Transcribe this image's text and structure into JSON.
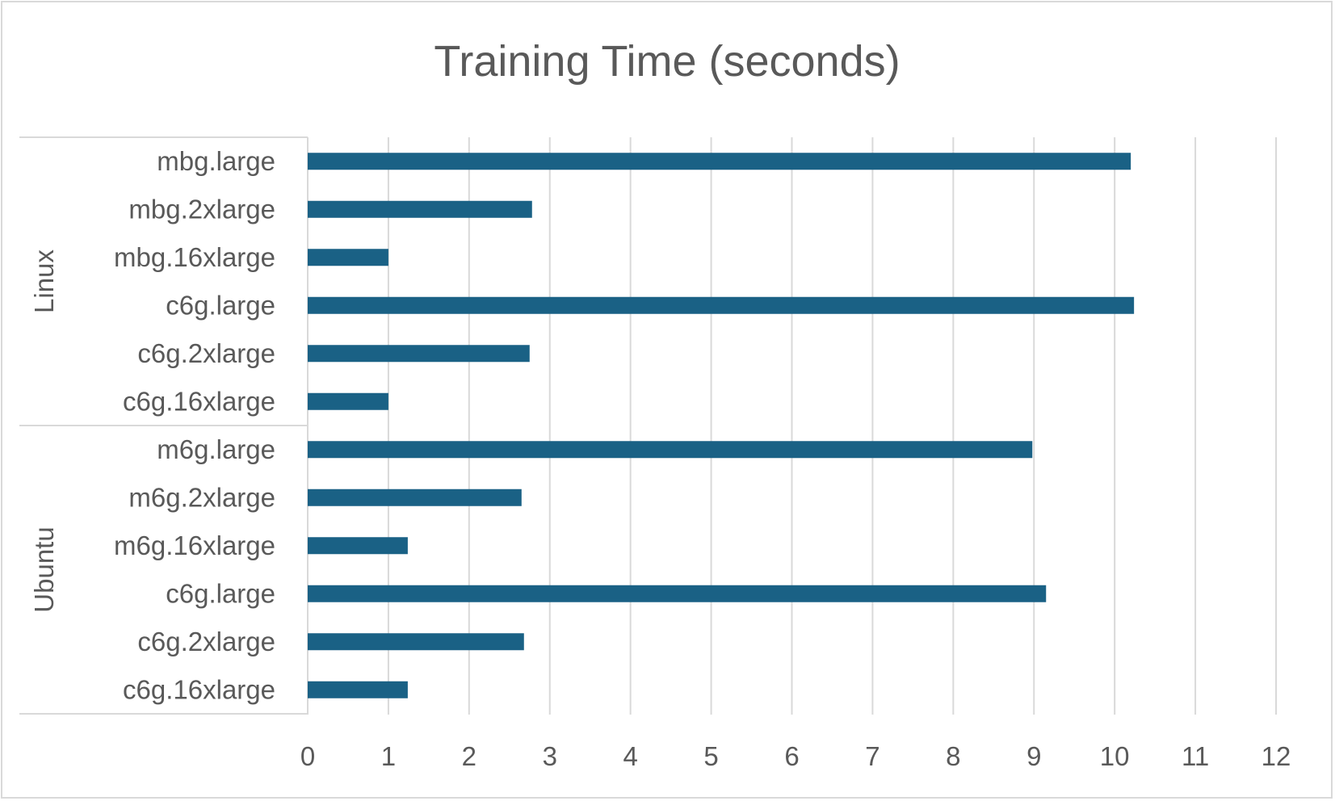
{
  "chart_data": {
    "type": "bar",
    "orientation": "horizontal",
    "title": "Training Time (seconds)",
    "xlabel": "",
    "ylabel": "",
    "xlim": [
      0,
      12
    ],
    "x_ticks": [
      0,
      1,
      2,
      3,
      4,
      5,
      6,
      7,
      8,
      9,
      10,
      11,
      12
    ],
    "grid": true,
    "legend": "none",
    "bar_color": "#1a6185",
    "groups": [
      {
        "name": "Linux",
        "categories": [
          "mbg.large",
          "mbg.2xlarge",
          "mbg.16xlarge",
          "c6g.large",
          "c6g.2xlarge",
          "c6g.16xlarge"
        ],
        "values": [
          10.2,
          2.78,
          1.0,
          10.24,
          2.75,
          1.0
        ]
      },
      {
        "name": "Ubuntu",
        "categories": [
          "m6g.large",
          "m6g.2xlarge",
          "m6g.16xlarge",
          "c6g.large",
          "c6g.2xlarge",
          "c6g.16xlarge"
        ],
        "values": [
          8.98,
          2.65,
          1.24,
          9.15,
          2.68,
          1.24
        ]
      }
    ]
  }
}
